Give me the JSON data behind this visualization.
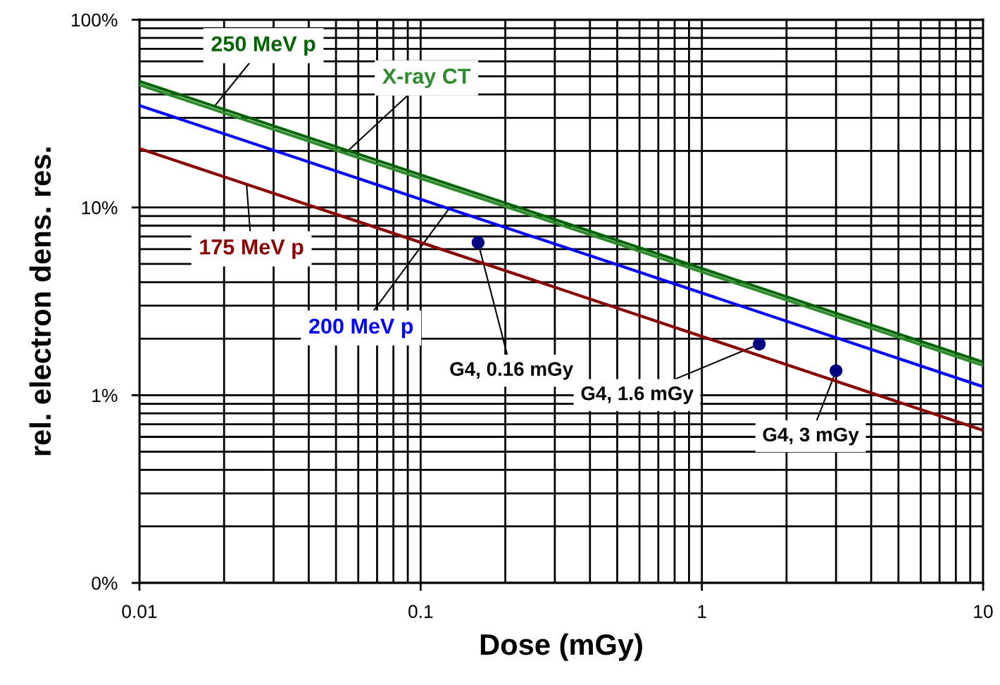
{
  "chart_data": {
    "type": "line",
    "xlabel": "Dose (mGy)",
    "ylabel": "rel. electron dens. res.",
    "log": "xy",
    "xlim": [
      0.01,
      10
    ],
    "xticks": [
      0.01,
      0.1,
      1,
      10
    ],
    "ylim": [
      0.1,
      100
    ],
    "yticks": [
      {
        "value": 0.1,
        "label": "0%"
      },
      {
        "value": 1,
        "label": "1%"
      },
      {
        "value": 10,
        "label": "10%"
      },
      {
        "value": 100,
        "label": "100%"
      }
    ],
    "grid": true,
    "legend": false,
    "marker": "none",
    "line_style": "solid",
    "series": [
      {
        "name": "250 MeV p",
        "color": "#006400",
        "x": [
          0.01,
          10
        ],
        "values": [
          47,
          1.5
        ]
      },
      {
        "name": "X-ray CT",
        "color": "#2e8b2e",
        "x": [
          0.01,
          10
        ],
        "values": [
          45,
          1.44
        ]
      },
      {
        "name": "200 MeV p",
        "color": "#0000ff",
        "x": [
          0.01,
          10
        ],
        "values": [
          34.9,
          1.11
        ]
      },
      {
        "name": "175 MeV p",
        "color": "#8b0000",
        "x": [
          0.01,
          10
        ],
        "values": [
          20.6,
          0.65
        ]
      },
      {
        "type": "scatter",
        "color": "#000080",
        "marker": "circle",
        "x": [
          0.16,
          1.6,
          3
        ],
        "values": [
          6.5,
          1.87,
          1.35
        ]
      }
    ],
    "annotations": [
      {
        "text": "G4, 0.16 mGy",
        "x": 0.16,
        "y": 6.5
      },
      {
        "text": "G4, 1.6 mGy",
        "x": 1.6,
        "y": 1.87
      },
      {
        "text": "G4, 3 mGy",
        "x": 3,
        "y": 1.35
      }
    ]
  }
}
